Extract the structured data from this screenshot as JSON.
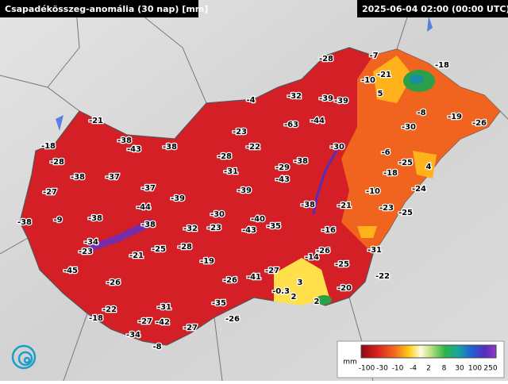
{
  "header": {
    "title": "Csapadékösszeg-anomália (30 nap) [mm]",
    "timestamp": "2025-06-04 02:00 (00:00 UTC)"
  },
  "station_values": [
    -28,
    -7,
    -21,
    -10,
    -18,
    5,
    -4,
    -32,
    -39,
    -39,
    -8,
    -19,
    -26,
    -21,
    -63,
    -44,
    -30,
    -23,
    -38,
    -43,
    -38,
    -22,
    -18,
    -28,
    -30,
    -6,
    -28,
    -38,
    -25,
    4,
    -29,
    -31,
    -18,
    -38,
    -37,
    -43,
    -27,
    -37,
    -39,
    -10,
    -24,
    -39,
    -44,
    -38,
    -21,
    -23,
    -25,
    -30,
    -9,
    -38,
    -38,
    -38,
    -40,
    -35,
    -32,
    -23,
    -43,
    -16,
    -34,
    -23,
    -25,
    -28,
    -26,
    -14,
    -31,
    -21,
    -19,
    -25,
    -45,
    -27,
    -41,
    3,
    -22,
    -26,
    -26,
    -20,
    -0.3,
    2,
    -35,
    2,
    -31,
    -22,
    -18,
    -27,
    -42,
    -26,
    -27,
    -34,
    -8
  ],
  "legend": {
    "unit": "mm",
    "labels": [
      -100,
      -30,
      -10,
      -4,
      2,
      8,
      30,
      100,
      250
    ]
  }
}
